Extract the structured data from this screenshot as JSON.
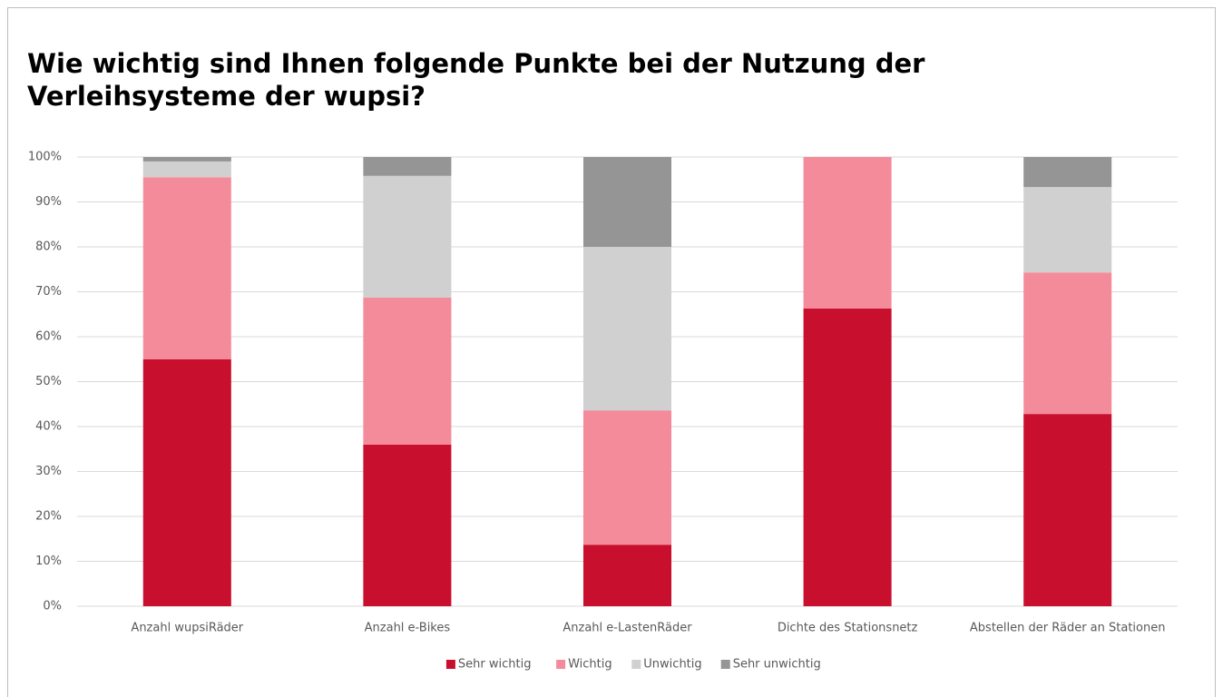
{
  "chart_data": {
    "type": "stacked_bar",
    "title": "Wie wichtig sind Ihnen folgende Punkte bei der Nutzung der Verleihsysteme der wupsi?",
    "categories": [
      "Anzahl wupsiRäder",
      "Anzahl e-Bikes",
      "Anzahl e-LastenRäder",
      "Dichte des Stationsnetz",
      "Abstellen der Räder an Stationen"
    ],
    "series": [
      {
        "name": "Sehr wichtig",
        "color": "#c8102e",
        "values": [
          55,
          36,
          13.7,
          66.3,
          42.8
        ]
      },
      {
        "name": "Wichtig",
        "color": "#f48b9a",
        "values": [
          40.5,
          32.7,
          29.9,
          33.7,
          31.5
        ]
      },
      {
        "name": "Unwichtig",
        "color": "#d0d0d0",
        "values": [
          3.5,
          27.1,
          36.4,
          0,
          19
        ]
      },
      {
        "name": "Sehr unwichtig",
        "color": "#959595",
        "values": [
          1,
          4.2,
          20,
          0,
          6.7
        ]
      }
    ],
    "ylim": [
      0,
      100
    ],
    "yticks": [
      {
        "value": 0,
        "label": "0%"
      },
      {
        "value": 10,
        "label": "10%"
      },
      {
        "value": 20,
        "label": "20%"
      },
      {
        "value": 30,
        "label": "30%"
      },
      {
        "value": 40,
        "label": "40%"
      },
      {
        "value": 50,
        "label": "50%"
      },
      {
        "value": 60,
        "label": "60%"
      },
      {
        "value": 70,
        "label": "70%"
      },
      {
        "value": 80,
        "label": "80%"
      },
      {
        "value": 90,
        "label": "90%"
      },
      {
        "value": 100,
        "label": "100%"
      }
    ],
    "grid": true,
    "legend": "bottom"
  }
}
